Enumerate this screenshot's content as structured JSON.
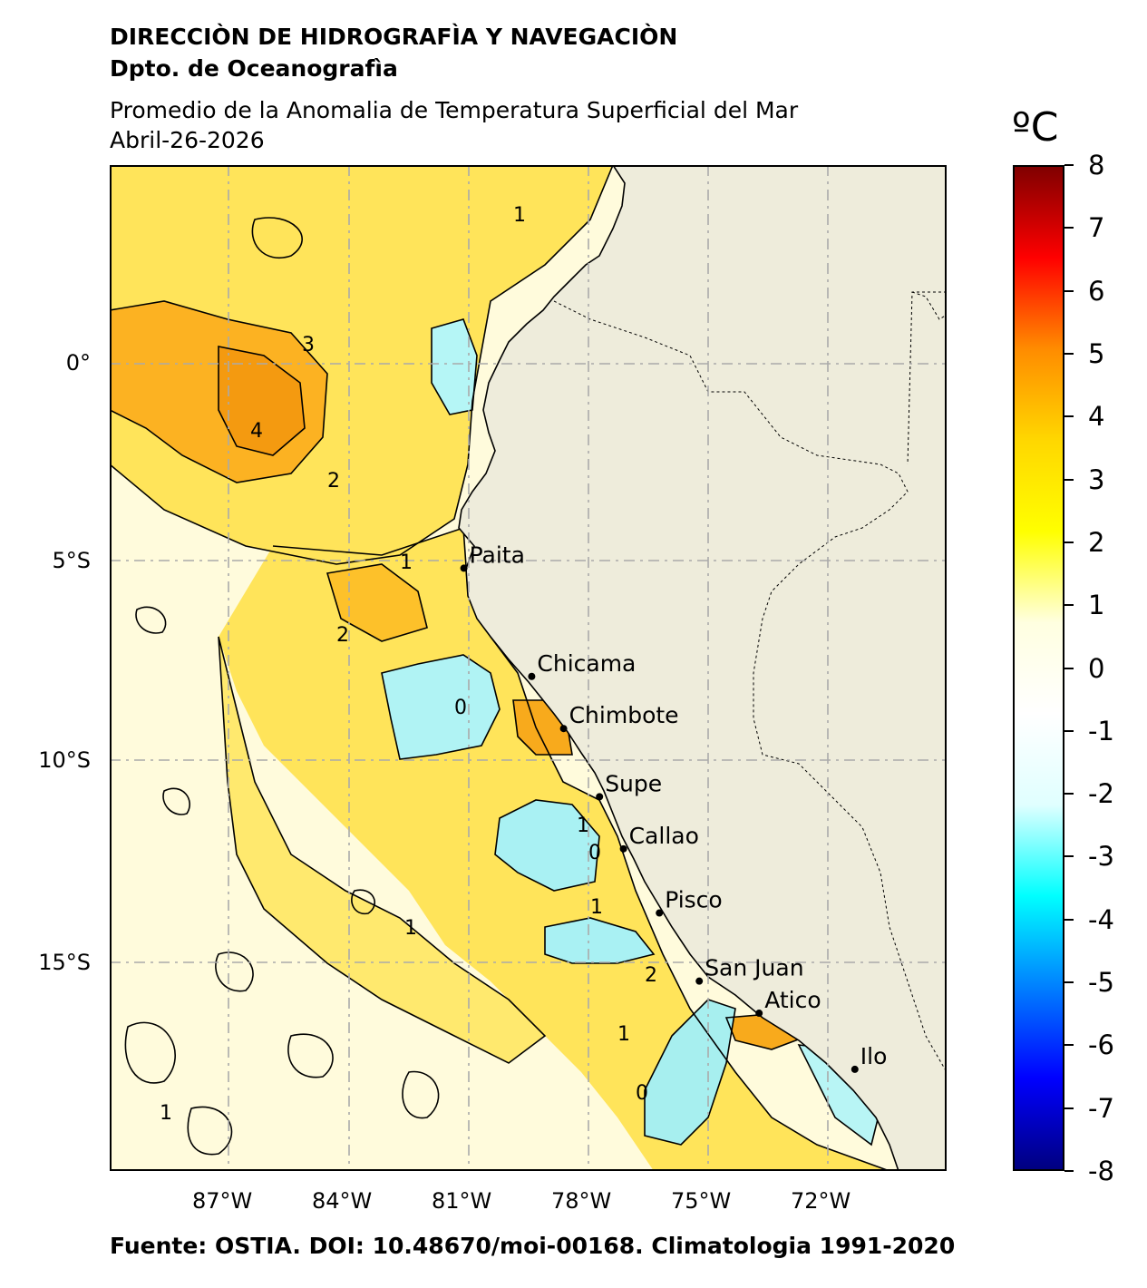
{
  "header": {
    "institution": "DIRECCIÒN DE HIDROGRAFÌA Y NAVEGACIÒN",
    "department": "Dpto. de Oceanografìa",
    "title": "Promedio de la Anomalia de Temperatura Superficial del Mar",
    "date": "Abril-26-2026"
  },
  "map": {
    "lat_labels": [
      "0°",
      "5°S",
      "10°S",
      "15°S"
    ],
    "lon_labels": [
      "87°W",
      "84°W",
      "81°W",
      "78°W",
      "75°W",
      "72°W"
    ],
    "ports": [
      {
        "name": "Paita",
        "lon": -81.1,
        "lat": -5.1
      },
      {
        "name": "Chicama",
        "lon": -79.4,
        "lat": -7.8
      },
      {
        "name": "Chimbote",
        "lon": -78.6,
        "lat": -9.1
      },
      {
        "name": "Supe",
        "lon": -77.7,
        "lat": -10.8
      },
      {
        "name": "Callao",
        "lon": -77.1,
        "lat": -12.1
      },
      {
        "name": "Pisco",
        "lon": -76.2,
        "lat": -13.7
      },
      {
        "name": "San Juan",
        "lon": -75.2,
        "lat": -15.4
      },
      {
        "name": "Atico",
        "lon": -73.7,
        "lat": -16.2
      },
      {
        "name": "Ilo",
        "lon": -71.3,
        "lat": -17.6
      }
    ],
    "contour_labels": [
      "4",
      "3",
      "2",
      "1",
      "0",
      "1",
      "2",
      "1",
      "0",
      "1",
      "1",
      "2",
      "1",
      "0",
      "1"
    ],
    "colors": {
      "land": "#eeecdb",
      "ocean_warm": "#ffd21a",
      "ocean_hot": "#fca31a",
      "ocean_cold": "#a7f6f7"
    }
  },
  "colorbar": {
    "unit": "ºC",
    "ticks": [
      "8",
      "7",
      "6",
      "5",
      "4",
      "3",
      "2",
      "1",
      "0",
      "-1",
      "-2",
      "-3",
      "-4",
      "-5",
      "-6",
      "-7",
      "-8"
    ],
    "colors": [
      "#800000",
      "#ff0000",
      "#ff8c00",
      "#ffd700",
      "#ffff00",
      "#ffffe0",
      "#ffffff",
      "#e0ffff",
      "#00ffff",
      "#0080ff",
      "#0000ff",
      "#000080"
    ]
  },
  "footer": {
    "source": "Fuente: OSTIA. DOI: 10.48670/moi-00168. Climatologia 1991-2020"
  }
}
